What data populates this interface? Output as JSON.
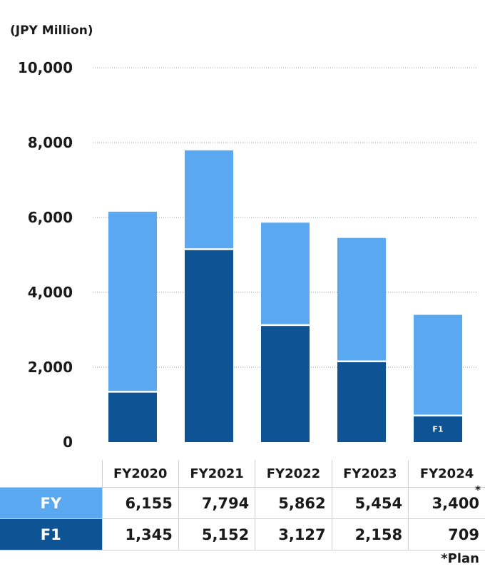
{
  "chart_data": {
    "type": "bar",
    "stacked": false,
    "unit_label": "(JPY Million)",
    "categories": [
      "FY2020",
      "FY2021",
      "FY2022",
      "FY2023",
      "FY2024"
    ],
    "series": [
      {
        "name": "FY",
        "values": [
          6155,
          7794,
          5862,
          5454,
          3400
        ],
        "color": "#5aa8f0"
      },
      {
        "name": "F1",
        "values": [
          1345,
          5152,
          3127,
          2158,
          709
        ],
        "color": "#0e5494"
      }
    ],
    "ylim": [
      0,
      10000
    ],
    "yticks": [
      "0",
      "2,000",
      "4,000",
      "6,000",
      "8,000",
      "10,000"
    ],
    "grid": true,
    "bar_annotation": {
      "category": "FY2024",
      "text": "F1"
    }
  },
  "table": {
    "headers": [
      "FY2020",
      "FY2021",
      "FY2022",
      "FY2023",
      "FY2024"
    ],
    "rows": [
      {
        "label": "FY",
        "cells": [
          "6,155",
          "7,794",
          "5,862",
          "5,454",
          "3,400"
        ]
      },
      {
        "label": "F1",
        "cells": [
          "1,345",
          "5,152",
          "3,127",
          "2,158",
          "709"
        ]
      }
    ],
    "plan_marker": "*",
    "footnote": "*Plan"
  }
}
